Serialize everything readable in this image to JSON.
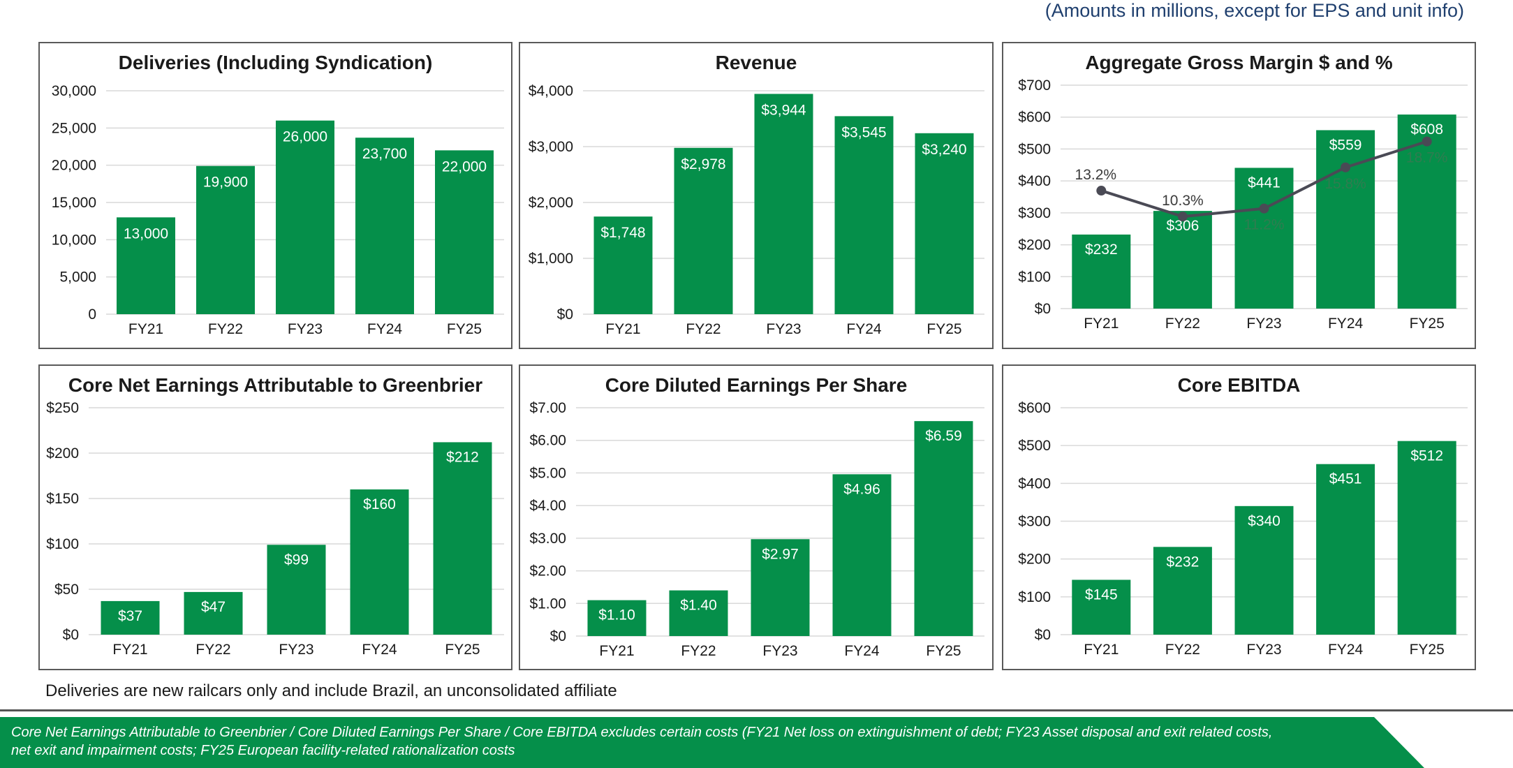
{
  "header": {
    "subtitle": "(Amounts in millions, except for EPS and unit info)"
  },
  "colors": {
    "bar": "#058f4a",
    "line": "#4a4a55",
    "grid": "#d9d9d9",
    "footer_bg": "#058f4a",
    "pct_in_bar": "#2f7d50",
    "pct_out": "#3a3a3a"
  },
  "chart_data": [
    {
      "type": "bar",
      "title": "Deliveries (Including Syndication)",
      "categories": [
        "FY21",
        "FY22",
        "FY23",
        "FY24",
        "FY25"
      ],
      "values": [
        13000,
        19900,
        26000,
        23700,
        22000
      ],
      "value_labels": [
        "13,000",
        "19,900",
        "26,000",
        "23,700",
        "22,000"
      ],
      "y_ticks": [
        0,
        5000,
        10000,
        15000,
        20000,
        25000,
        30000
      ],
      "y_tick_labels": [
        "0",
        "5,000",
        "10,000",
        "15,000",
        "20,000",
        "25,000",
        "30,000"
      ],
      "ylim": [
        0,
        30000
      ]
    },
    {
      "type": "bar",
      "title": "Revenue",
      "categories": [
        "FY21",
        "FY22",
        "FY23",
        "FY24",
        "FY25"
      ],
      "values": [
        1748,
        2978,
        3944,
        3545,
        3240
      ],
      "value_labels": [
        "$1,748",
        "$2,978",
        "$3,944",
        "$3,545",
        "$3,240"
      ],
      "y_ticks": [
        0,
        1000,
        2000,
        3000,
        4000
      ],
      "y_tick_labels": [
        "$0",
        "$1,000",
        "$2,000",
        "$3,000",
        "$4,000"
      ],
      "ylim": [
        0,
        4000
      ]
    },
    {
      "type": "bar",
      "title": "Aggregate Gross Margin $ and %",
      "categories": [
        "FY21",
        "FY22",
        "FY23",
        "FY24",
        "FY25"
      ],
      "values": [
        232,
        306,
        441,
        559,
        608
      ],
      "value_labels": [
        "$232",
        "$306",
        "$441",
        "$559",
        "$608"
      ],
      "y_ticks": [
        0,
        100,
        200,
        300,
        400,
        500,
        600,
        700
      ],
      "y_tick_labels": [
        "$0",
        "$100",
        "$200",
        "$300",
        "$400",
        "$500",
        "$600",
        "$700"
      ],
      "ylim": [
        0,
        700
      ],
      "line_series": {
        "name": "Gross Margin %",
        "values": [
          13.2,
          10.3,
          11.2,
          15.8,
          18.7
        ],
        "labels": [
          "13.2%",
          "10.3%",
          "11.2%",
          "15.8%",
          "18.7%"
        ],
        "ylim": [
          0,
          25
        ]
      }
    },
    {
      "type": "bar",
      "title": "Core Net Earnings Attributable to Greenbrier",
      "categories": [
        "FY21",
        "FY22",
        "FY23",
        "FY24",
        "FY25"
      ],
      "values": [
        37,
        47,
        99,
        160,
        212
      ],
      "value_labels": [
        "$37",
        "$47",
        "$99",
        "$160",
        "$212"
      ],
      "y_ticks": [
        0,
        50,
        100,
        150,
        200,
        250
      ],
      "y_tick_labels": [
        "$0",
        "$50",
        "$100",
        "$150",
        "$200",
        "$250"
      ],
      "ylim": [
        0,
        250
      ]
    },
    {
      "type": "bar",
      "title": "Core Diluted Earnings Per Share",
      "categories": [
        "FY21",
        "FY22",
        "FY23",
        "FY24",
        "FY25"
      ],
      "values": [
        1.1,
        1.4,
        2.97,
        4.96,
        6.59
      ],
      "value_labels": [
        "$1.10",
        "$1.40",
        "$2.97",
        "$4.96",
        "$6.59"
      ],
      "y_ticks": [
        0,
        1,
        2,
        3,
        4,
        5,
        6,
        7
      ],
      "y_tick_labels": [
        "$0",
        "$1.00",
        "$2.00",
        "$3.00",
        "$4.00",
        "$5.00",
        "$6.00",
        "$7.00"
      ],
      "ylim": [
        0,
        7
      ]
    },
    {
      "type": "bar",
      "title": "Core EBITDA",
      "categories": [
        "FY21",
        "FY22",
        "FY23",
        "FY24",
        "FY25"
      ],
      "values": [
        145,
        232,
        340,
        451,
        512
      ],
      "value_labels": [
        "$145",
        "$232",
        "$340",
        "$451",
        "$512"
      ],
      "y_ticks": [
        0,
        100,
        200,
        300,
        400,
        500,
        600
      ],
      "y_tick_labels": [
        "$0",
        "$100",
        "$200",
        "$300",
        "$400",
        "$500",
        "$600"
      ],
      "ylim": [
        0,
        600
      ]
    }
  ],
  "notes": {
    "deliveries": "Deliveries are new railcars only and include Brazil, an unconsolidated affiliate"
  },
  "footer": {
    "line1": "Core Net Earnings Attributable to Greenbrier / Core Diluted Earnings Per Share / Core EBITDA excludes certain costs (FY21 Net loss on extinguishment of debt; FY23 Asset disposal and exit related costs,",
    "line2": "net exit and impairment costs; FY25 European facility-related rationalization costs"
  }
}
